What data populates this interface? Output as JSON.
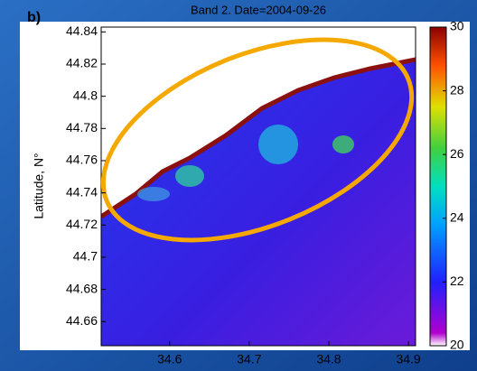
{
  "panel_label": "b)",
  "title": "Band 2. Date=2004-09-26",
  "y_label": "Latitude, N°",
  "xlim": [
    34.514,
    34.909
  ],
  "ylim": [
    44.645,
    44.843
  ],
  "xticks": [
    34.6,
    34.7,
    34.8,
    34.9
  ],
  "yticks": [
    44.84,
    44.82,
    44.8,
    44.78,
    44.76,
    44.74,
    44.72,
    44.7,
    44.68,
    44.66
  ],
  "colorbar": {
    "lim": [
      20,
      30
    ],
    "ticks": [
      30,
      28,
      26,
      24,
      22,
      20
    ]
  }
}
